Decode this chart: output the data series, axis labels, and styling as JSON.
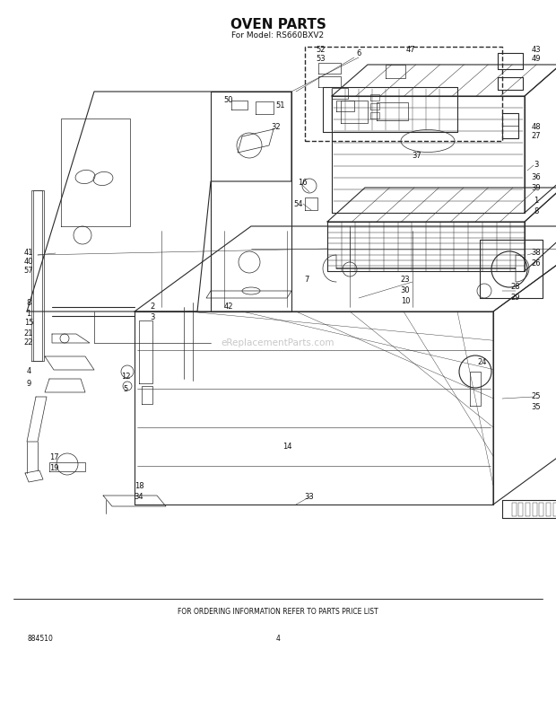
{
  "title": "OVEN PARTS",
  "subtitle": "For Model: RS660BXV2",
  "footer_text": "FOR ORDERING INFORMATION REFER TO PARTS PRICE LIST",
  "page_number": "4",
  "part_number": "884510",
  "bg_color": "#ffffff",
  "line_color": "#2a2a2a",
  "title_fontsize": 11,
  "subtitle_fontsize": 6.5,
  "footer_fontsize": 5.5,
  "label_fontsize": 6.0,
  "watermark_text": "eReplacementParts.com",
  "watermark_color": "#c8c8c8",
  "figw": 6.2,
  "figh": 7.82,
  "dpi": 100
}
